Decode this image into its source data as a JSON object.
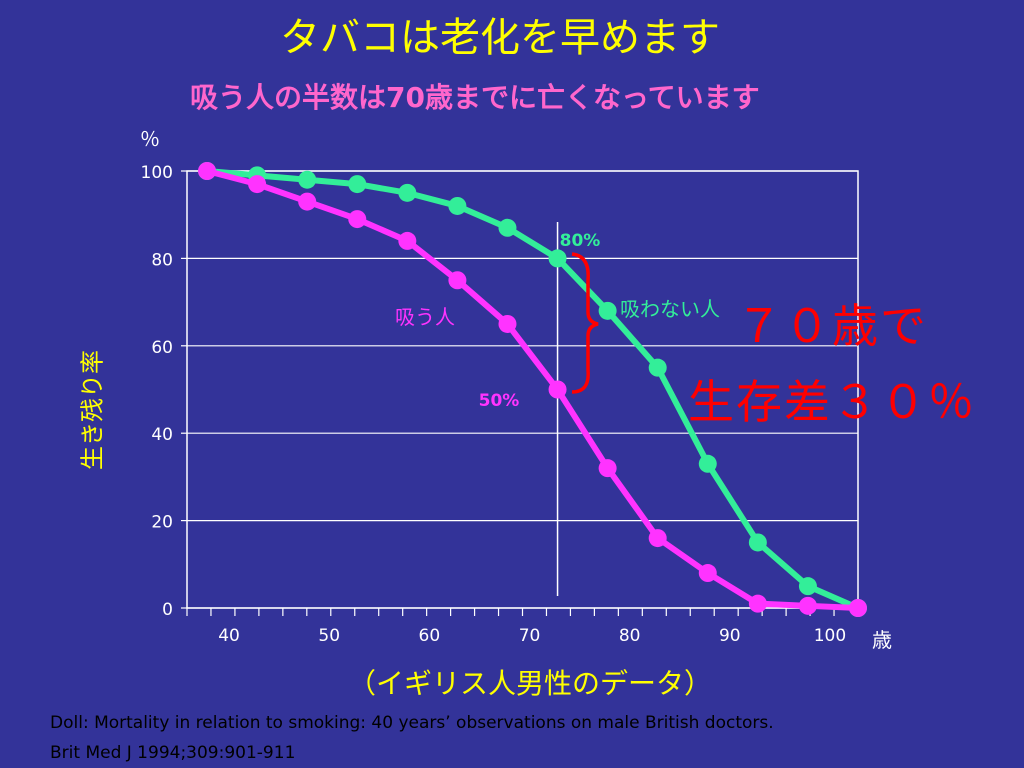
{
  "slide": {
    "title": "タバコは老化を早めます",
    "subtitle": "吸う人の半数は70歳までに亡くなっています",
    "y_unit": "％",
    "x_unit": "歳",
    "ylabel": "生き残り率",
    "x_caption": "（イギリス人男性のデータ）",
    "overlay_line1": "７０歳で",
    "overlay_line2": "生存差３０％",
    "citation_line1": "Doll:   Mortality in relation to smoking: 40 years’ observations on male British doctors.",
    "citation_line2": "Brit Med J 1994;309:901-911"
  },
  "colors": {
    "background": "#333399",
    "title": "#FFFF00",
    "smoker": "#FF33FF",
    "nonsmoker": "#33EE99",
    "overlay": "#FF0000",
    "bracket": "#FF0000"
  },
  "chart_data": {
    "type": "line",
    "xlim": [
      35,
      102
    ],
    "ylim": [
      0,
      100
    ],
    "yticks": [
      0,
      20,
      40,
      60,
      80,
      100
    ],
    "xticks": [
      40,
      50,
      60,
      70,
      80,
      90,
      100
    ],
    "grid": true,
    "series": [
      {
        "name": "吸わない人",
        "color": "#33EE99",
        "x": [
          37,
          42,
          47,
          52,
          57,
          62,
          67,
          72,
          77,
          82,
          87,
          92,
          97,
          102
        ],
        "y": [
          100,
          99,
          98,
          97,
          95,
          92,
          87,
          80,
          68,
          55,
          33,
          15,
          5,
          0
        ]
      },
      {
        "name": "吸う人",
        "color": "#FF33FF",
        "x": [
          37,
          42,
          47,
          52,
          57,
          62,
          67,
          72,
          77,
          82,
          87,
          92,
          97,
          102
        ],
        "y": [
          100,
          97,
          93,
          89,
          84,
          75,
          65,
          50,
          32,
          16,
          8,
          1,
          0.5,
          0
        ]
      }
    ],
    "annotations": {
      "vline_x": 72,
      "label_nonsmoker_point": "80%",
      "label_smoker_point": "50%",
      "label_smoker_series": "吸う人",
      "label_nonsmoker_series": "吸わない人"
    }
  }
}
